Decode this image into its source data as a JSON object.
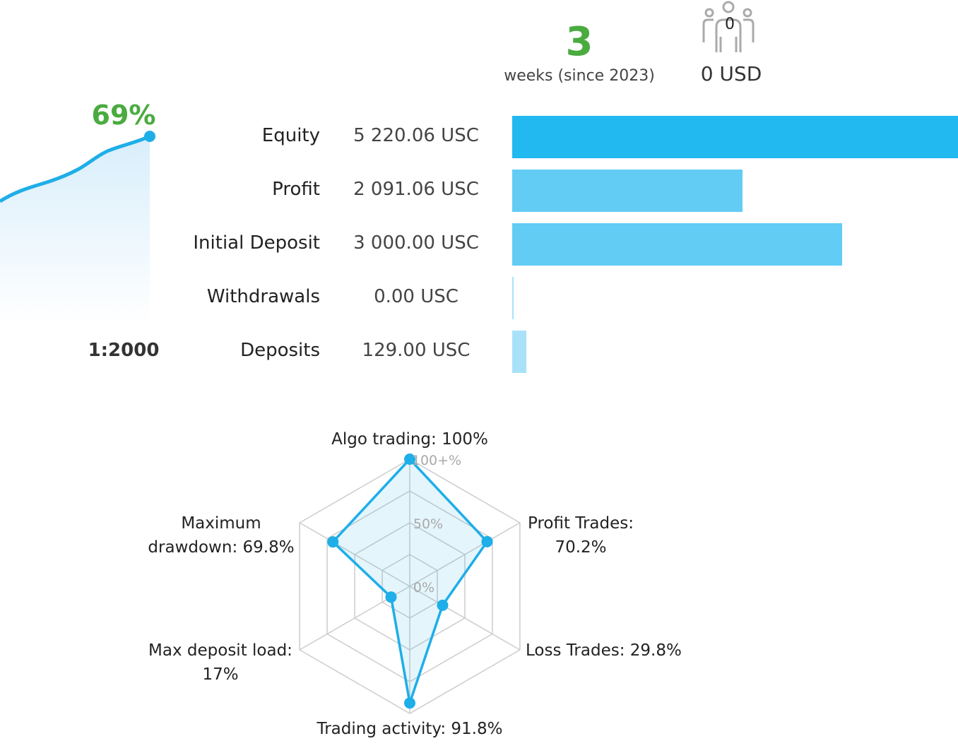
{
  "summary": {
    "weeks_value": "3",
    "weeks_label": "weeks (since 2023)",
    "subscribers_count": "0",
    "subscribers_usd": "0 USD",
    "subscribers_icon": "people-group-icon"
  },
  "growth": {
    "percent_label": "69%",
    "leverage": "1:2000",
    "color": "#1eaee8"
  },
  "account": {
    "rows": [
      {
        "label": "Equity",
        "value": "5 220.06 USC",
        "bar_fraction": 1.0,
        "bar_color": "#22b8f0"
      },
      {
        "label": "Profit",
        "value": "2 091.06 USC",
        "bar_fraction": 0.516,
        "bar_color": "#62ccf5"
      },
      {
        "label": "Initial Deposit",
        "value": "3 000.00 USC",
        "bar_fraction": 0.74,
        "bar_color": "#62ccf5"
      },
      {
        "label": "Withdrawals",
        "value": "0.00 USC",
        "bar_fraction": 0.003,
        "bar_color": "#a8e2f9"
      },
      {
        "label": "Deposits",
        "value": "129.00 USC",
        "bar_fraction": 0.032,
        "bar_color": "#a8e2f9"
      }
    ]
  },
  "chart_data": {
    "type": "radar",
    "axis_ticks": [
      "0%",
      "50%",
      "100+%"
    ],
    "axes": [
      {
        "name": "Algo trading: 100%",
        "value": 100
      },
      {
        "name": "Profit Trades: 70.2%",
        "value": 70.2
      },
      {
        "name": "Loss Trades: 29.8%",
        "value": 29.8
      },
      {
        "name": "Trading activity: 91.8%",
        "value": 91.8
      },
      {
        "name": "Max deposit load: 17%",
        "value": 17
      },
      {
        "name": "Maximum drawdown: 69.8%",
        "value": 69.8
      }
    ],
    "labels": {
      "algo": "Algo trading: 100%",
      "profit_1": "Profit Trades:",
      "profit_2": "70.2%",
      "loss": "Loss Trades: 29.8%",
      "activity": "Trading activity: 91.8%",
      "load_1": "Max deposit load:",
      "load_2": "17%",
      "drawdown_1": "Maximum",
      "drawdown_2": "drawdown: 69.8%"
    },
    "line_color": "#1eaee8",
    "grid_color": "#cccccc"
  }
}
